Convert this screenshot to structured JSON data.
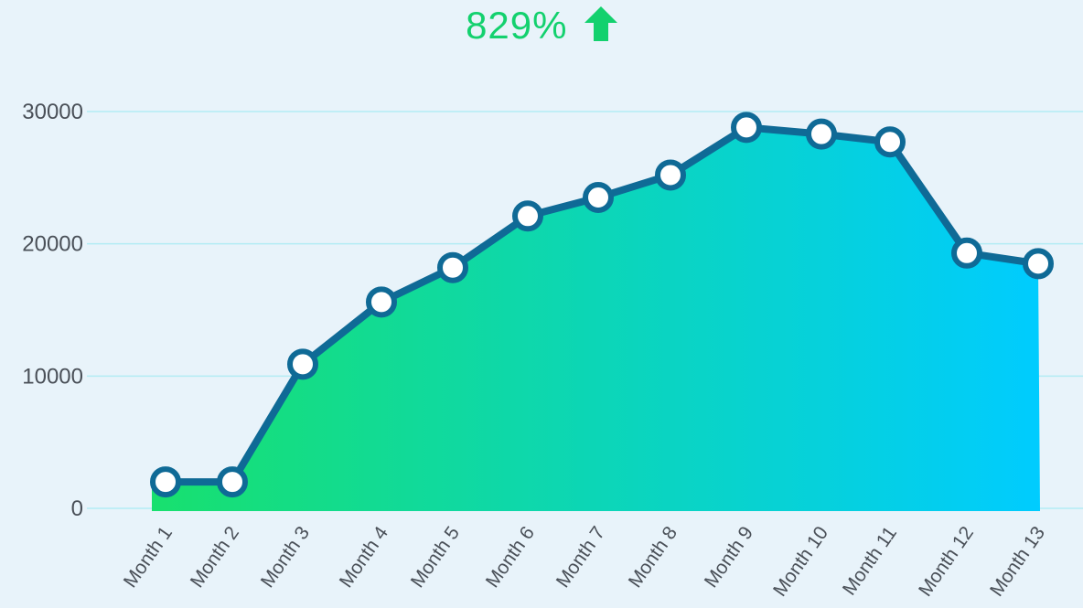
{
  "headline": {
    "value": "829%",
    "icon": "arrow-up-icon",
    "color": "#13d16e"
  },
  "chart_data": {
    "type": "area",
    "title": "",
    "xlabel": "",
    "ylabel": "",
    "categories": [
      "Month 1",
      "Month 2",
      "Month 3",
      "Month 4",
      "Month 5",
      "Month 6",
      "Month 7",
      "Month 8",
      "Month 9",
      "Month 10",
      "Month 11",
      "Month 12",
      "Month 13"
    ],
    "series": [
      {
        "values": [
          2000,
          2000,
          10900,
          15600,
          18200,
          22100,
          23500,
          25200,
          28800,
          28300,
          27700,
          19300,
          18500
        ]
      }
    ],
    "ylim": [
      0,
      30000
    ],
    "yticks": [
      "0",
      "10000",
      "20000",
      "30000"
    ],
    "grid": true,
    "legend": "none",
    "colors": {
      "line": "#0f6a96",
      "marker_fill": "#ffffff",
      "fill_start": "#18e06e",
      "fill_end": "#00ccff",
      "grid": "#b3ecf4"
    }
  }
}
